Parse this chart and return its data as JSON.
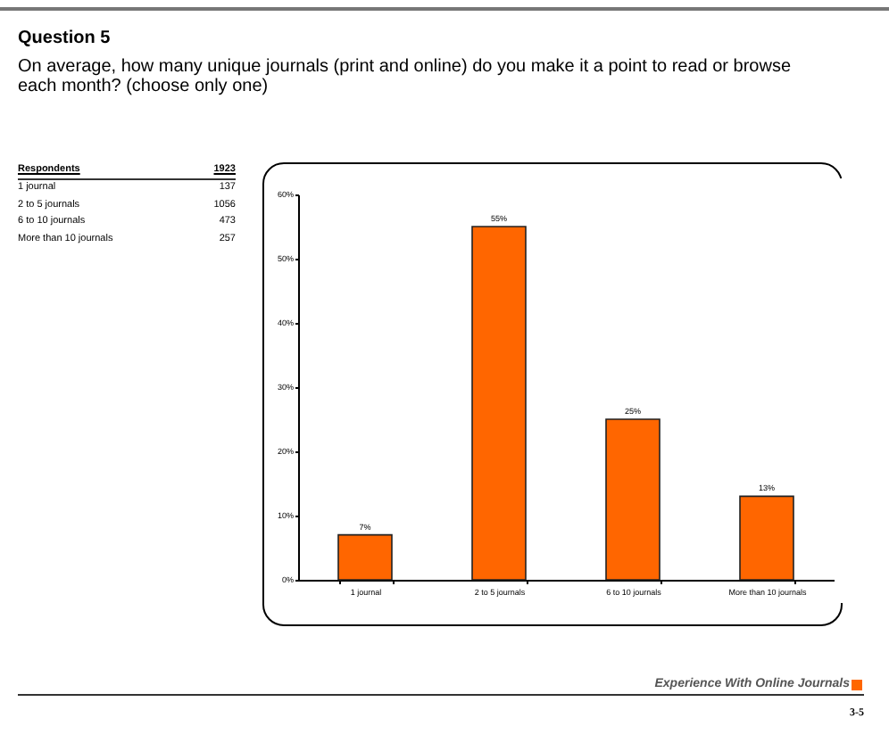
{
  "chart_data": {
    "type": "bar",
    "title": "Question 5",
    "subtitle": "On average, how many unique journals (print and online) do you make it a point to read or browse each month? (choose only one)",
    "categories": [
      "1 journal",
      "2 to 5 journals",
      "6 to 10 journals",
      "More than 10 journals"
    ],
    "values": [
      7,
      55,
      25,
      13
    ],
    "value_labels": [
      "7%",
      "55%",
      "25%",
      "13%"
    ],
    "color": "#ff6600",
    "ylim": [
      0,
      60
    ],
    "yticks": [
      {
        "value": 0,
        "label": "0%"
      },
      {
        "value": 10,
        "label": "10%"
      },
      {
        "value": 20,
        "label": "20%"
      },
      {
        "value": 30,
        "label": "30%"
      },
      {
        "value": 40,
        "label": "40%"
      },
      {
        "value": 50,
        "label": "50%"
      },
      {
        "value": 60,
        "label": "60%"
      }
    ],
    "grid": false,
    "annotations": [
      "Respondents",
      "1923",
      "1 journal",
      "137",
      "2 to 5 journals",
      "1056",
      "6 to 10 journals",
      "473",
      "More than 10 journals",
      "257",
      "Experience With Online Journals",
      "3-5"
    ]
  }
}
